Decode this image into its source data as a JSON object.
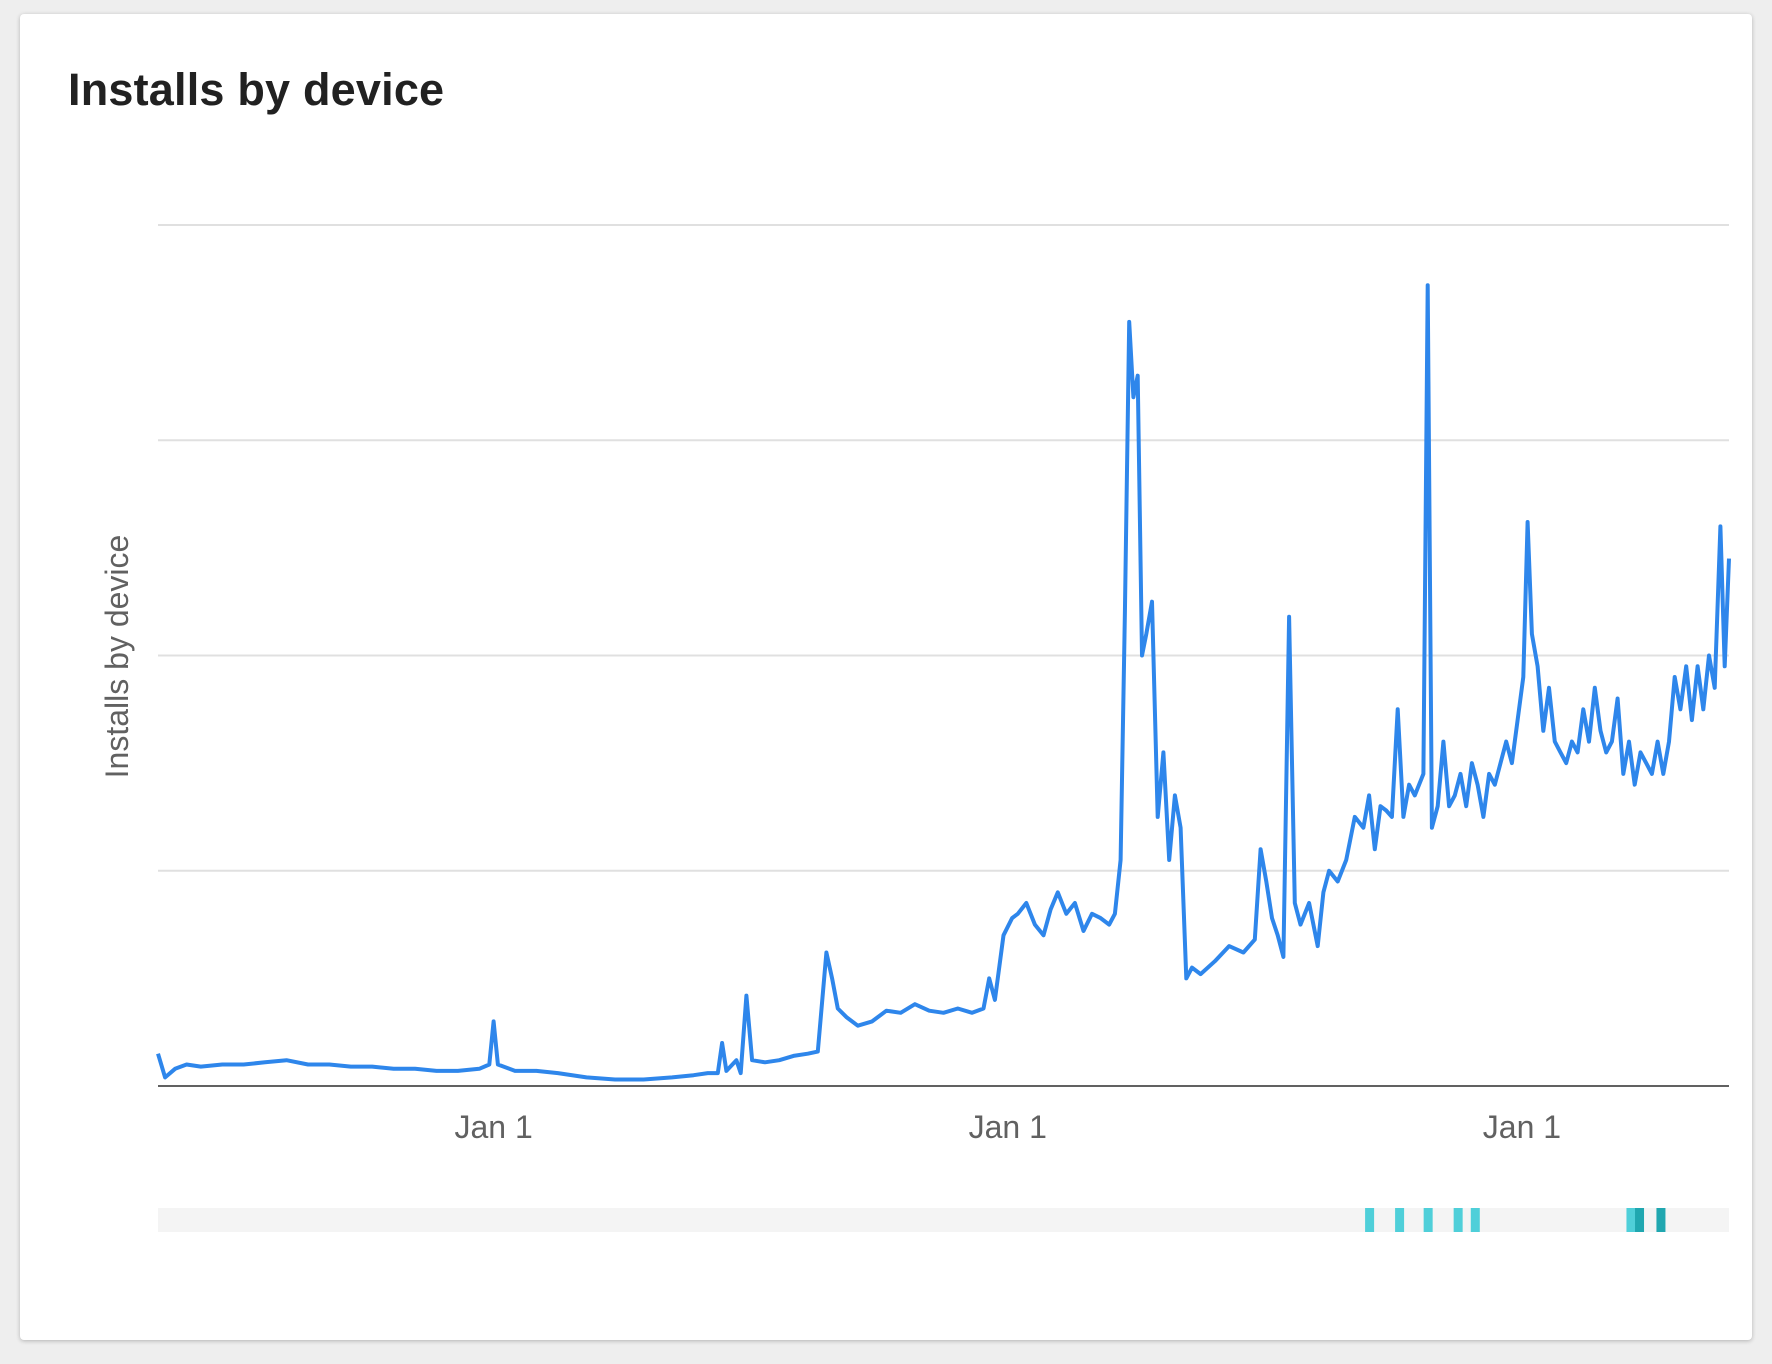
{
  "card": {
    "title": "Installs by device"
  },
  "colors": {
    "line": "#2e86eb",
    "grid": "#e0e0e0",
    "axis": "#616161",
    "tick_text": "#616161",
    "range_track": "#f4f4f4",
    "marker": "#4fcfd9",
    "marker_dark": "#20a7b0"
  },
  "chart_data": {
    "type": "line",
    "title": "",
    "ylabel": "Installs by device",
    "xlabel": "",
    "grid": true,
    "ylim": [
      0,
      4
    ],
    "x_range": [
      0,
      1100
    ],
    "x_ticks": [
      {
        "x": 235,
        "label": "Jan 1"
      },
      {
        "x": 595,
        "label": "Jan 1"
      },
      {
        "x": 955,
        "label": "Jan 1"
      }
    ],
    "series": [
      {
        "points": [
          [
            0,
            0.15
          ],
          [
            5,
            0.04
          ],
          [
            12,
            0.08
          ],
          [
            20,
            0.1
          ],
          [
            30,
            0.09
          ],
          [
            45,
            0.1
          ],
          [
            60,
            0.1
          ],
          [
            75,
            0.11
          ],
          [
            90,
            0.12
          ],
          [
            105,
            0.1
          ],
          [
            120,
            0.1
          ],
          [
            135,
            0.09
          ],
          [
            150,
            0.09
          ],
          [
            165,
            0.08
          ],
          [
            180,
            0.08
          ],
          [
            195,
            0.07
          ],
          [
            210,
            0.07
          ],
          [
            225,
            0.08
          ],
          [
            232,
            0.1
          ],
          [
            235,
            0.3
          ],
          [
            238,
            0.1
          ],
          [
            250,
            0.07
          ],
          [
            265,
            0.07
          ],
          [
            280,
            0.06
          ],
          [
            300,
            0.04
          ],
          [
            320,
            0.03
          ],
          [
            340,
            0.03
          ],
          [
            360,
            0.04
          ],
          [
            375,
            0.05
          ],
          [
            385,
            0.06
          ],
          [
            392,
            0.06
          ],
          [
            395,
            0.2
          ],
          [
            398,
            0.07
          ],
          [
            405,
            0.12
          ],
          [
            408,
            0.06
          ],
          [
            412,
            0.42
          ],
          [
            416,
            0.12
          ],
          [
            425,
            0.11
          ],
          [
            435,
            0.12
          ],
          [
            445,
            0.14
          ],
          [
            455,
            0.15
          ],
          [
            462,
            0.16
          ],
          [
            468,
            0.62
          ],
          [
            472,
            0.5
          ],
          [
            476,
            0.36
          ],
          [
            482,
            0.32
          ],
          [
            490,
            0.28
          ],
          [
            500,
            0.3
          ],
          [
            510,
            0.35
          ],
          [
            520,
            0.34
          ],
          [
            530,
            0.38
          ],
          [
            540,
            0.35
          ],
          [
            550,
            0.34
          ],
          [
            560,
            0.36
          ],
          [
            570,
            0.34
          ],
          [
            578,
            0.36
          ],
          [
            582,
            0.5
          ],
          [
            586,
            0.4
          ],
          [
            592,
            0.7
          ],
          [
            598,
            0.78
          ],
          [
            602,
            0.8
          ],
          [
            608,
            0.85
          ],
          [
            614,
            0.75
          ],
          [
            620,
            0.7
          ],
          [
            625,
            0.82
          ],
          [
            630,
            0.9
          ],
          [
            636,
            0.8
          ],
          [
            642,
            0.85
          ],
          [
            648,
            0.72
          ],
          [
            654,
            0.8
          ],
          [
            660,
            0.78
          ],
          [
            666,
            0.75
          ],
          [
            670,
            0.8
          ],
          [
            674,
            1.05
          ],
          [
            677,
            2.2
          ],
          [
            680,
            3.55
          ],
          [
            683,
            3.2
          ],
          [
            686,
            3.3
          ],
          [
            689,
            2.0
          ],
          [
            692,
            2.1
          ],
          [
            696,
            2.25
          ],
          [
            700,
            1.25
          ],
          [
            704,
            1.55
          ],
          [
            708,
            1.05
          ],
          [
            712,
            1.35
          ],
          [
            716,
            1.2
          ],
          [
            720,
            0.5
          ],
          [
            724,
            0.55
          ],
          [
            730,
            0.52
          ],
          [
            740,
            0.58
          ],
          [
            750,
            0.65
          ],
          [
            760,
            0.62
          ],
          [
            768,
            0.68
          ],
          [
            772,
            1.1
          ],
          [
            776,
            0.95
          ],
          [
            780,
            0.78
          ],
          [
            784,
            0.7
          ],
          [
            788,
            0.6
          ],
          [
            792,
            2.18
          ],
          [
            796,
            0.85
          ],
          [
            800,
            0.75
          ],
          [
            806,
            0.85
          ],
          [
            812,
            0.65
          ],
          [
            816,
            0.9
          ],
          [
            820,
            1.0
          ],
          [
            826,
            0.95
          ],
          [
            832,
            1.05
          ],
          [
            838,
            1.25
          ],
          [
            844,
            1.2
          ],
          [
            848,
            1.35
          ],
          [
            852,
            1.1
          ],
          [
            856,
            1.3
          ],
          [
            860,
            1.28
          ],
          [
            864,
            1.25
          ],
          [
            868,
            1.75
          ],
          [
            872,
            1.25
          ],
          [
            876,
            1.4
          ],
          [
            880,
            1.35
          ],
          [
            886,
            1.45
          ],
          [
            889,
            3.72
          ],
          [
            892,
            1.2
          ],
          [
            896,
            1.3
          ],
          [
            900,
            1.6
          ],
          [
            904,
            1.3
          ],
          [
            908,
            1.35
          ],
          [
            912,
            1.45
          ],
          [
            916,
            1.3
          ],
          [
            920,
            1.5
          ],
          [
            924,
            1.4
          ],
          [
            928,
            1.25
          ],
          [
            932,
            1.45
          ],
          [
            936,
            1.4
          ],
          [
            940,
            1.5
          ],
          [
            944,
            1.6
          ],
          [
            948,
            1.5
          ],
          [
            952,
            1.7
          ],
          [
            956,
            1.9
          ],
          [
            959,
            2.62
          ],
          [
            962,
            2.1
          ],
          [
            966,
            1.95
          ],
          [
            970,
            1.65
          ],
          [
            974,
            1.85
          ],
          [
            978,
            1.6
          ],
          [
            982,
            1.55
          ],
          [
            986,
            1.5
          ],
          [
            990,
            1.6
          ],
          [
            994,
            1.55
          ],
          [
            998,
            1.75
          ],
          [
            1002,
            1.6
          ],
          [
            1006,
            1.85
          ],
          [
            1010,
            1.65
          ],
          [
            1014,
            1.55
          ],
          [
            1018,
            1.6
          ],
          [
            1022,
            1.8
          ],
          [
            1026,
            1.45
          ],
          [
            1030,
            1.6
          ],
          [
            1034,
            1.4
          ],
          [
            1038,
            1.55
          ],
          [
            1042,
            1.5
          ],
          [
            1046,
            1.45
          ],
          [
            1050,
            1.6
          ],
          [
            1054,
            1.45
          ],
          [
            1058,
            1.6
          ],
          [
            1062,
            1.9
          ],
          [
            1066,
            1.75
          ],
          [
            1070,
            1.95
          ],
          [
            1074,
            1.7
          ],
          [
            1078,
            1.95
          ],
          [
            1082,
            1.75
          ],
          [
            1086,
            2.0
          ],
          [
            1090,
            1.85
          ],
          [
            1094,
            2.6
          ],
          [
            1097,
            1.95
          ],
          [
            1100,
            2.45
          ]
        ]
      }
    ]
  },
  "range_selector": {
    "markers": [
      {
        "x": 848,
        "dark": false
      },
      {
        "x": 869,
        "dark": false
      },
      {
        "x": 889,
        "dark": false
      },
      {
        "x": 910,
        "dark": false
      },
      {
        "x": 922,
        "dark": false
      },
      {
        "x": 1031,
        "dark": false
      },
      {
        "x": 1037,
        "dark": true
      },
      {
        "x": 1052,
        "dark": true
      }
    ]
  }
}
